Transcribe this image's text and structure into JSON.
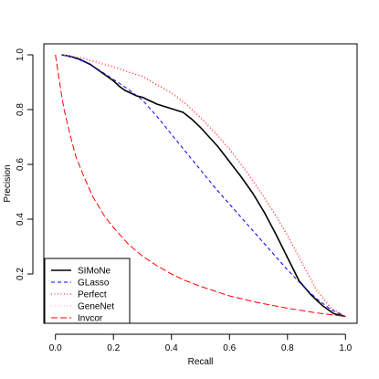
{
  "chart_data": {
    "type": "line",
    "xlabel": "Recall",
    "ylabel": "Precision",
    "xlim": [
      -0.04,
      1.04
    ],
    "ylim": [
      0.02,
      1.04
    ],
    "x_ticks": [
      0.0,
      0.2,
      0.4,
      0.6,
      0.8,
      1.0
    ],
    "x_tick_labels": [
      "0.0",
      "0.2",
      "0.4",
      "0.6",
      "0.8",
      "1.0"
    ],
    "y_ticks": [
      0.2,
      0.4,
      0.6,
      0.8,
      1.0
    ],
    "y_tick_labels": [
      "0.2",
      "0.4",
      "0.6",
      "0.8",
      "1.0"
    ],
    "grid": false,
    "legend_position": "bottom-left",
    "series": [
      {
        "name": "SIMoNe",
        "color": "#000000",
        "style": "solid",
        "x": [
          0.02,
          0.05,
          0.08,
          0.1,
          0.12,
          0.14,
          0.16,
          0.18,
          0.2,
          0.22,
          0.24,
          0.26,
          0.28,
          0.3,
          0.32,
          0.35,
          0.38,
          0.41,
          0.44,
          0.47,
          0.5,
          0.53,
          0.56,
          0.6,
          0.64,
          0.68,
          0.72,
          0.76,
          0.8,
          0.84,
          0.88,
          0.92,
          0.96,
          1.0
        ],
        "y": [
          1.0,
          0.995,
          0.985,
          0.975,
          0.965,
          0.95,
          0.935,
          0.92,
          0.905,
          0.885,
          0.87,
          0.86,
          0.85,
          0.845,
          0.835,
          0.82,
          0.81,
          0.8,
          0.79,
          0.765,
          0.735,
          0.7,
          0.665,
          0.61,
          0.555,
          0.495,
          0.425,
          0.345,
          0.26,
          0.175,
          0.125,
          0.085,
          0.055,
          0.045
        ]
      },
      {
        "name": "GLasso",
        "color": "#0000ff",
        "style": "dashed",
        "x": [
          0.02,
          0.06,
          0.1,
          0.15,
          0.2,
          0.25,
          0.3,
          0.35,
          0.4,
          0.45,
          0.5,
          0.55,
          0.6,
          0.65,
          0.7,
          0.75,
          0.8,
          0.85,
          0.9,
          0.95,
          1.0
        ],
        "y": [
          1.0,
          0.99,
          0.975,
          0.945,
          0.91,
          0.875,
          0.835,
          0.775,
          0.71,
          0.645,
          0.58,
          0.515,
          0.455,
          0.395,
          0.335,
          0.275,
          0.215,
          0.16,
          0.11,
          0.07,
          0.045
        ]
      },
      {
        "name": "Perfect",
        "color": "#ff0000",
        "style": "dotted",
        "x": [
          0.02,
          0.1,
          0.2,
          0.3,
          0.4,
          0.45,
          0.5,
          0.55,
          0.6,
          0.65,
          0.7,
          0.75,
          0.8,
          0.85,
          0.9,
          0.95,
          1.0
        ],
        "y": [
          1.0,
          0.985,
          0.955,
          0.92,
          0.86,
          0.82,
          0.77,
          0.715,
          0.655,
          0.585,
          0.51,
          0.43,
          0.34,
          0.24,
          0.14,
          0.075,
          0.045
        ]
      },
      {
        "name": "GeneNet",
        "color": "#ffaaaa",
        "style": "dotted",
        "x": [
          0.02,
          0.1,
          0.2,
          0.3,
          0.4,
          0.45,
          0.5,
          0.55,
          0.6,
          0.65,
          0.7,
          0.75,
          0.8,
          0.85,
          0.9,
          0.95,
          1.0
        ],
        "y": [
          1.0,
          0.99,
          0.96,
          0.925,
          0.865,
          0.825,
          0.775,
          0.72,
          0.66,
          0.59,
          0.515,
          0.43,
          0.345,
          0.25,
          0.15,
          0.08,
          0.045
        ]
      },
      {
        "name": "Invcor",
        "color": "#ff0000",
        "style": "longdash",
        "x": [
          0.0,
          0.01,
          0.02,
          0.03,
          0.05,
          0.07,
          0.1,
          0.13,
          0.17,
          0.2,
          0.25,
          0.3,
          0.35,
          0.4,
          0.45,
          0.5,
          0.6,
          0.7,
          0.8,
          0.9,
          1.0
        ],
        "y": [
          1.0,
          0.93,
          0.86,
          0.8,
          0.71,
          0.63,
          0.55,
          0.48,
          0.41,
          0.37,
          0.31,
          0.265,
          0.23,
          0.2,
          0.175,
          0.155,
          0.12,
          0.095,
          0.075,
          0.058,
          0.045
        ]
      }
    ]
  }
}
